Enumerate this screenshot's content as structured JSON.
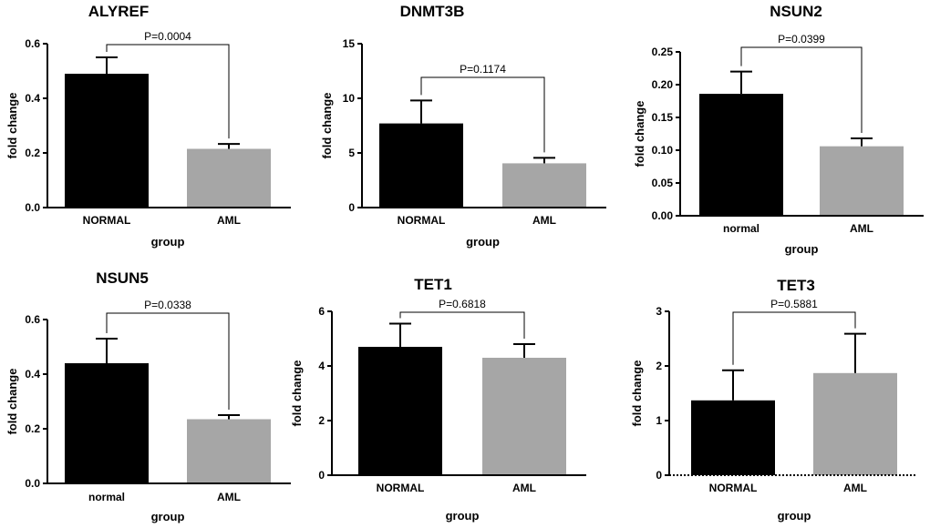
{
  "chart_data": [
    {
      "type": "bar",
      "title": "ALYREF",
      "categories": [
        "NORMAL",
        "AML"
      ],
      "values": [
        0.49,
        0.215
      ],
      "errors": [
        0.06,
        0.018
      ],
      "colors": [
        "#000000",
        "#a6a6a6"
      ],
      "ylim": [
        0,
        0.6
      ],
      "yticks": [
        "0.0",
        "0.2",
        "0.4",
        "0.6"
      ],
      "xlabel": "group",
      "ylabel": "fold change",
      "pvalue": "P=0.0004"
    },
    {
      "type": "bar",
      "title": "DNMT3B",
      "categories": [
        "NORMAL",
        "AML"
      ],
      "values": [
        7.7,
        4.05
      ],
      "errors": [
        2.1,
        0.5
      ],
      "colors": [
        "#000000",
        "#a6a6a6"
      ],
      "ylim": [
        0,
        15
      ],
      "yticks": [
        "0",
        "5",
        "10",
        "15"
      ],
      "xlabel": "group",
      "ylabel": "fold change",
      "pvalue": "P=0.1174"
    },
    {
      "type": "bar",
      "title": "NSUN2",
      "categories": [
        "normal",
        "AML"
      ],
      "values": [
        0.186,
        0.106
      ],
      "errors": [
        0.034,
        0.012
      ],
      "colors": [
        "#000000",
        "#a6a6a6"
      ],
      "ylim": [
        0,
        0.25
      ],
      "yticks": [
        "0.00",
        "0.05",
        "0.10",
        "0.15",
        "0.20",
        "0.25"
      ],
      "xlabel": "group",
      "ylabel": "fold change",
      "pvalue": "P=0.0399"
    },
    {
      "type": "bar",
      "title": "NSUN5",
      "categories": [
        "normal",
        "AML"
      ],
      "values": [
        0.44,
        0.235
      ],
      "errors": [
        0.09,
        0.015
      ],
      "colors": [
        "#000000",
        "#a6a6a6"
      ],
      "ylim": [
        0,
        0.6
      ],
      "yticks": [
        "0.0",
        "0.2",
        "0.4",
        "0.6"
      ],
      "xlabel": "group",
      "ylabel": "fold change",
      "pvalue": "P=0.0338"
    },
    {
      "type": "bar",
      "title": "TET1",
      "categories": [
        "NORMAL",
        "AML"
      ],
      "values": [
        4.7,
        4.3
      ],
      "errors": [
        0.85,
        0.5
      ],
      "colors": [
        "#000000",
        "#a6a6a6"
      ],
      "ylim": [
        0,
        6
      ],
      "yticks": [
        "0",
        "2",
        "4",
        "6"
      ],
      "xlabel": "group",
      "ylabel": "fold change",
      "pvalue": "P=0.6818"
    },
    {
      "type": "bar",
      "title": "TET3",
      "categories": [
        "NORMAL",
        "AML"
      ],
      "values": [
        1.37,
        1.87
      ],
      "errors": [
        0.55,
        0.72
      ],
      "colors": [
        "#000000",
        "#a6a6a6"
      ],
      "ylim": [
        0,
        3
      ],
      "yticks": [
        "0",
        "1",
        "2",
        "3"
      ],
      "xlabel": "group",
      "ylabel": "fold change",
      "pvalue": "P=0.5881"
    }
  ]
}
